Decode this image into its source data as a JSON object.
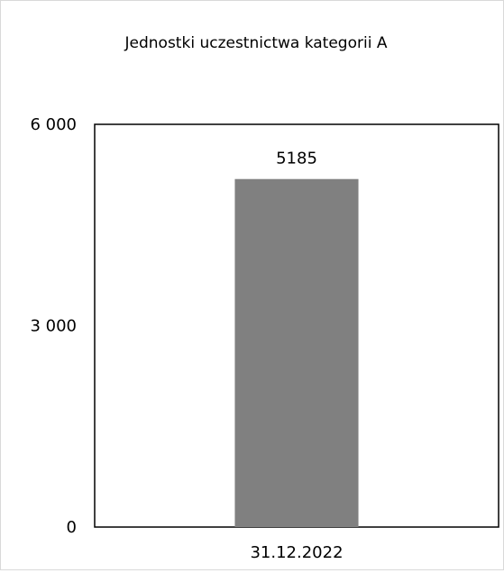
{
  "chart_data": {
    "type": "bar",
    "title": "Jednostki uczestnictwa kategorii A",
    "categories": [
      "31.12.2022"
    ],
    "values": [
      5185
    ],
    "data_labels": [
      "5185"
    ],
    "ylim": [
      0,
      6000
    ],
    "yticks": [
      {
        "value": 0,
        "label": "0"
      },
      {
        "value": 3000,
        "label": "3 000"
      },
      {
        "value": 6000,
        "label": "6 000"
      }
    ],
    "bar_color": "#808080",
    "grid": false,
    "legend": "none"
  }
}
